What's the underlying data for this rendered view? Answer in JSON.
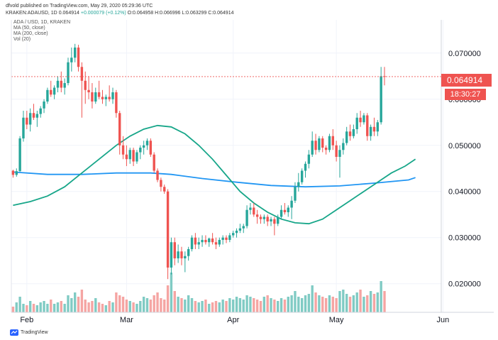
{
  "header": {
    "published": "dfvold published on TradingView.com, May 29, 2020 05:29:36 UTC",
    "symbol": "KRAKEN:ADAUSD, 1D",
    "last": "0.064914",
    "change": "+0.000079 (+0.12%)",
    "ohlc": "O:0.064958 H:0.066996 L:0.063299 C:0.064914"
  },
  "legend": {
    "line1": "ADA / USD, 1D, KRAKEN",
    "line2": "MA (50, close)",
    "line3": "MA (200, close)",
    "line4": "Vol (20)"
  },
  "price_tag": "0.064914",
  "time_tag": "18:30:27",
  "footer": {
    "brand": "TradingView"
  },
  "colors": {
    "up": "#26a69a",
    "down": "#ef5350",
    "vol_up": "#80cbc4",
    "vol_down": "#f5a5a3",
    "ma50": "#17a689",
    "ma200": "#2196f3"
  },
  "chart_data": {
    "type": "candlestick",
    "y_axis_ticks": [
      "0.070000",
      "0.060000",
      "0.050000",
      "0.040000",
      "0.030000",
      "0.020000"
    ],
    "ylim": [
      0.0138,
      0.0772
    ],
    "x_axis_ticks": [
      {
        "label": "Feb",
        "day": 4
      },
      {
        "label": "Mar",
        "day": 33
      },
      {
        "label": "Apr",
        "day": 64
      },
      {
        "label": "May",
        "day": 94
      },
      {
        "label": "Jun",
        "day": 125
      }
    ],
    "candles": [
      [
        0.0445,
        0.0447,
        0.043,
        0.0436
      ],
      [
        0.0436,
        0.045,
        0.0432,
        0.0444
      ],
      [
        0.0444,
        0.052,
        0.0443,
        0.0515
      ],
      [
        0.0515,
        0.0575,
        0.0508,
        0.056
      ],
      [
        0.056,
        0.0575,
        0.0535,
        0.0545
      ],
      [
        0.0545,
        0.058,
        0.053,
        0.057
      ],
      [
        0.057,
        0.059,
        0.0555,
        0.056
      ],
      [
        0.056,
        0.0575,
        0.054,
        0.0568
      ],
      [
        0.0568,
        0.0585,
        0.056,
        0.058
      ],
      [
        0.058,
        0.06,
        0.057,
        0.0595
      ],
      [
        0.0595,
        0.0625,
        0.059,
        0.062
      ],
      [
        0.062,
        0.064,
        0.0605,
        0.061
      ],
      [
        0.061,
        0.063,
        0.06,
        0.0625
      ],
      [
        0.0625,
        0.065,
        0.0615,
        0.064
      ],
      [
        0.064,
        0.066,
        0.0615,
        0.0625
      ],
      [
        0.0625,
        0.0645,
        0.061,
        0.0635
      ],
      [
        0.0635,
        0.069,
        0.063,
        0.068
      ],
      [
        0.068,
        0.0712,
        0.066,
        0.069
      ],
      [
        0.069,
        0.072,
        0.068,
        0.0712
      ],
      [
        0.0712,
        0.0718,
        0.066,
        0.067
      ],
      [
        0.067,
        0.068,
        0.056,
        0.064
      ],
      [
        0.064,
        0.066,
        0.059,
        0.062
      ],
      [
        0.062,
        0.065,
        0.06,
        0.0615
      ],
      [
        0.0615,
        0.0635,
        0.058,
        0.0595
      ],
      [
        0.0595,
        0.0625,
        0.059,
        0.0615
      ],
      [
        0.0615,
        0.064,
        0.06,
        0.0605
      ],
      [
        0.0605,
        0.062,
        0.059,
        0.06
      ],
      [
        0.06,
        0.061,
        0.0585,
        0.0605
      ],
      [
        0.0605,
        0.063,
        0.0595,
        0.06
      ],
      [
        0.06,
        0.0625,
        0.059,
        0.0615
      ],
      [
        0.0615,
        0.062,
        0.056,
        0.057
      ],
      [
        0.057,
        0.0575,
        0.048,
        0.05
      ],
      [
        0.05,
        0.052,
        0.047,
        0.048
      ],
      [
        0.048,
        0.05,
        0.0455,
        0.047
      ],
      [
        0.047,
        0.0495,
        0.046,
        0.049
      ],
      [
        0.049,
        0.0495,
        0.0455,
        0.0465
      ],
      [
        0.0465,
        0.049,
        0.046,
        0.0485
      ],
      [
        0.0485,
        0.05,
        0.047,
        0.0495
      ],
      [
        0.0495,
        0.051,
        0.048,
        0.05
      ],
      [
        0.05,
        0.0515,
        0.049,
        0.051
      ],
      [
        0.051,
        0.0515,
        0.0475,
        0.048
      ],
      [
        0.048,
        0.0485,
        0.044,
        0.0445
      ],
      [
        0.0445,
        0.045,
        0.042,
        0.0425
      ],
      [
        0.0425,
        0.043,
        0.04,
        0.041
      ],
      [
        0.041,
        0.0415,
        0.0395,
        0.04
      ],
      [
        0.04,
        0.0405,
        0.021,
        0.0235
      ],
      [
        0.0235,
        0.03,
        0.022,
        0.029
      ],
      [
        0.029,
        0.03,
        0.024,
        0.0255
      ],
      [
        0.0255,
        0.0285,
        0.0245,
        0.027
      ],
      [
        0.027,
        0.028,
        0.024,
        0.0255
      ],
      [
        0.0255,
        0.027,
        0.0225,
        0.026
      ],
      [
        0.026,
        0.028,
        0.025,
        0.0275
      ],
      [
        0.0275,
        0.0305,
        0.027,
        0.03
      ],
      [
        0.03,
        0.031,
        0.0275,
        0.0285
      ],
      [
        0.0285,
        0.03,
        0.0275,
        0.029
      ],
      [
        0.029,
        0.0305,
        0.028,
        0.0295
      ],
      [
        0.0295,
        0.0305,
        0.0285,
        0.029
      ],
      [
        0.029,
        0.03,
        0.028,
        0.0298
      ],
      [
        0.0298,
        0.031,
        0.0285,
        0.029
      ],
      [
        0.029,
        0.03,
        0.0275,
        0.0285
      ],
      [
        0.0285,
        0.03,
        0.028,
        0.0295
      ],
      [
        0.0295,
        0.0305,
        0.0285,
        0.03
      ],
      [
        0.03,
        0.0305,
        0.0288,
        0.0295
      ],
      [
        0.0295,
        0.031,
        0.029,
        0.0305
      ],
      [
        0.0305,
        0.0315,
        0.03,
        0.031
      ],
      [
        0.031,
        0.032,
        0.03,
        0.0315
      ],
      [
        0.0315,
        0.033,
        0.031,
        0.032
      ],
      [
        0.032,
        0.033,
        0.031,
        0.0325
      ],
      [
        0.0325,
        0.037,
        0.032,
        0.036
      ],
      [
        0.036,
        0.0375,
        0.035,
        0.0365
      ],
      [
        0.0365,
        0.0375,
        0.0345,
        0.035
      ],
      [
        0.035,
        0.036,
        0.033,
        0.0345
      ],
      [
        0.0345,
        0.035,
        0.033,
        0.034
      ],
      [
        0.034,
        0.035,
        0.033,
        0.0345
      ],
      [
        0.0345,
        0.035,
        0.0325,
        0.0335
      ],
      [
        0.0335,
        0.0345,
        0.0325,
        0.034
      ],
      [
        0.034,
        0.0345,
        0.0305,
        0.033
      ],
      [
        0.033,
        0.035,
        0.0325,
        0.0345
      ],
      [
        0.0345,
        0.037,
        0.034,
        0.036
      ],
      [
        0.036,
        0.0375,
        0.035,
        0.0355
      ],
      [
        0.0355,
        0.037,
        0.0345,
        0.0365
      ],
      [
        0.0365,
        0.039,
        0.034,
        0.038
      ],
      [
        0.038,
        0.042,
        0.0375,
        0.041
      ],
      [
        0.041,
        0.044,
        0.04,
        0.042
      ],
      [
        0.042,
        0.045,
        0.0415,
        0.0445
      ],
      [
        0.0445,
        0.0465,
        0.043,
        0.046
      ],
      [
        0.046,
        0.049,
        0.045,
        0.048
      ],
      [
        0.048,
        0.053,
        0.0475,
        0.051
      ],
      [
        0.051,
        0.0525,
        0.048,
        0.049
      ],
      [
        0.049,
        0.052,
        0.0485,
        0.0515
      ],
      [
        0.0515,
        0.052,
        0.0485,
        0.0495
      ],
      [
        0.0495,
        0.05,
        0.048,
        0.049
      ],
      [
        0.049,
        0.0525,
        0.0485,
        0.052
      ],
      [
        0.052,
        0.0535,
        0.049,
        0.05
      ],
      [
        0.05,
        0.051,
        0.0465,
        0.0475
      ],
      [
        0.0475,
        0.05,
        0.043,
        0.049
      ],
      [
        0.049,
        0.0515,
        0.048,
        0.0505
      ],
      [
        0.0505,
        0.054,
        0.05,
        0.053
      ],
      [
        0.053,
        0.0545,
        0.051,
        0.052
      ],
      [
        0.052,
        0.0545,
        0.0515,
        0.0535
      ],
      [
        0.0535,
        0.057,
        0.0525,
        0.056
      ],
      [
        0.056,
        0.0575,
        0.054,
        0.055
      ],
      [
        0.055,
        0.057,
        0.0545,
        0.0565
      ],
      [
        0.0565,
        0.057,
        0.051,
        0.052
      ],
      [
        0.052,
        0.0545,
        0.051,
        0.054
      ],
      [
        0.054,
        0.056,
        0.052,
        0.053
      ],
      [
        0.053,
        0.0555,
        0.052,
        0.055
      ],
      [
        0.055,
        0.067,
        0.0545,
        0.065
      ],
      [
        0.065,
        0.067,
        0.063,
        0.0649
      ]
    ],
    "volume": [
      20,
      35,
      55,
      30,
      25,
      40,
      30,
      25,
      35,
      40,
      30,
      45,
      30,
      35,
      40,
      30,
      60,
      50,
      70,
      55,
      80,
      45,
      35,
      40,
      50,
      35,
      30,
      25,
      40,
      35,
      70,
      60,
      55,
      45,
      40,
      35,
      30,
      40,
      55,
      50,
      45,
      60,
      70,
      50,
      45,
      95,
      140,
      75,
      55,
      50,
      45,
      60,
      50,
      40,
      35,
      40,
      45,
      30,
      35,
      40,
      35,
      45,
      40,
      50,
      45,
      55,
      50,
      45,
      60,
      55,
      50,
      45,
      40,
      55,
      60,
      50,
      45,
      40,
      50,
      45,
      55,
      60,
      75,
      55,
      50,
      60,
      65,
      95,
      70,
      60,
      55,
      50,
      60,
      55,
      50,
      75,
      80,
      65,
      55,
      60,
      70,
      80,
      55,
      60,
      75,
      65,
      70,
      110,
      75
    ],
    "volume_ylim": [
      0,
      150
    ],
    "ma50": [
      [
        0,
        0.037
      ],
      [
        5,
        0.0378
      ],
      [
        10,
        0.039
      ],
      [
        15,
        0.041
      ],
      [
        20,
        0.044
      ],
      [
        25,
        0.047
      ],
      [
        30,
        0.05
      ],
      [
        34,
        0.052
      ],
      [
        38,
        0.0535
      ],
      [
        42,
        0.0543
      ],
      [
        46,
        0.054
      ],
      [
        50,
        0.0525
      ],
      [
        54,
        0.05
      ],
      [
        58,
        0.047
      ],
      [
        62,
        0.0435
      ],
      [
        66,
        0.04
      ],
      [
        70,
        0.0375
      ],
      [
        74,
        0.0355
      ],
      [
        78,
        0.034
      ],
      [
        82,
        0.0332
      ],
      [
        86,
        0.033
      ],
      [
        90,
        0.034
      ],
      [
        94,
        0.036
      ],
      [
        98,
        0.038
      ],
      [
        102,
        0.04
      ],
      [
        106,
        0.042
      ],
      [
        110,
        0.044
      ],
      [
        114,
        0.0455
      ],
      [
        117,
        0.047
      ]
    ],
    "ma200": [
      [
        0,
        0.0442
      ],
      [
        10,
        0.0437
      ],
      [
        20,
        0.0437
      ],
      [
        30,
        0.044
      ],
      [
        40,
        0.044
      ],
      [
        46,
        0.0437
      ],
      [
        55,
        0.0428
      ],
      [
        65,
        0.042
      ],
      [
        75,
        0.0413
      ],
      [
        85,
        0.041
      ],
      [
        95,
        0.0412
      ],
      [
        105,
        0.0418
      ],
      [
        115,
        0.0425
      ],
      [
        117,
        0.043
      ]
    ]
  }
}
